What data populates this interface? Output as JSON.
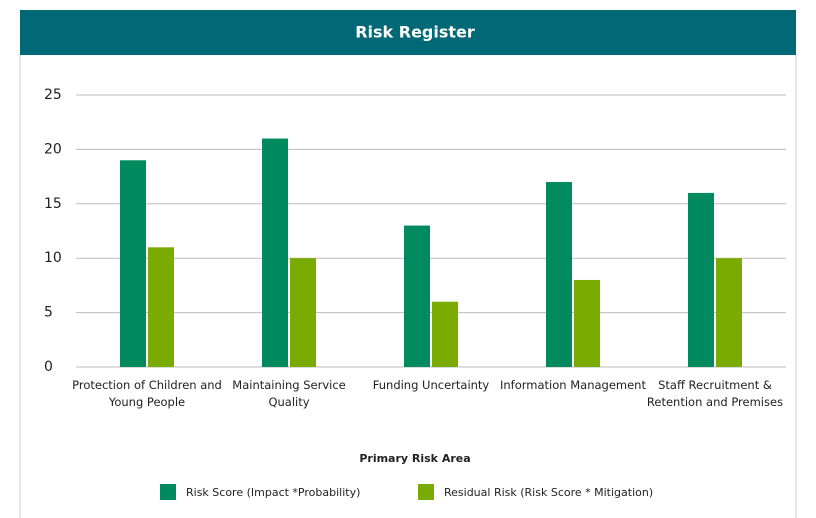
{
  "chart_data": {
    "type": "bar",
    "title": "Risk Register",
    "categories": [
      "Protection of Children and Young People",
      "Maintaining Service Quality",
      "Funding Uncertainty",
      "Information Management",
      "Staff Recruitment & Retention and Premises"
    ],
    "series": [
      {
        "name": "Risk Score (Impact *Probability)",
        "color": "#008a5e",
        "values": [
          19,
          21,
          13,
          17,
          16
        ]
      },
      {
        "name": "Residual Risk (Risk Score * Mitigation)",
        "color": "#7aab00",
        "values": [
          11,
          10,
          6,
          8,
          10
        ]
      }
    ],
    "x_label": "Primary Risk Area",
    "ylim": [
      0,
      25
    ],
    "yticks": [
      0,
      5,
      10,
      15,
      20,
      25
    ],
    "grid": true
  }
}
